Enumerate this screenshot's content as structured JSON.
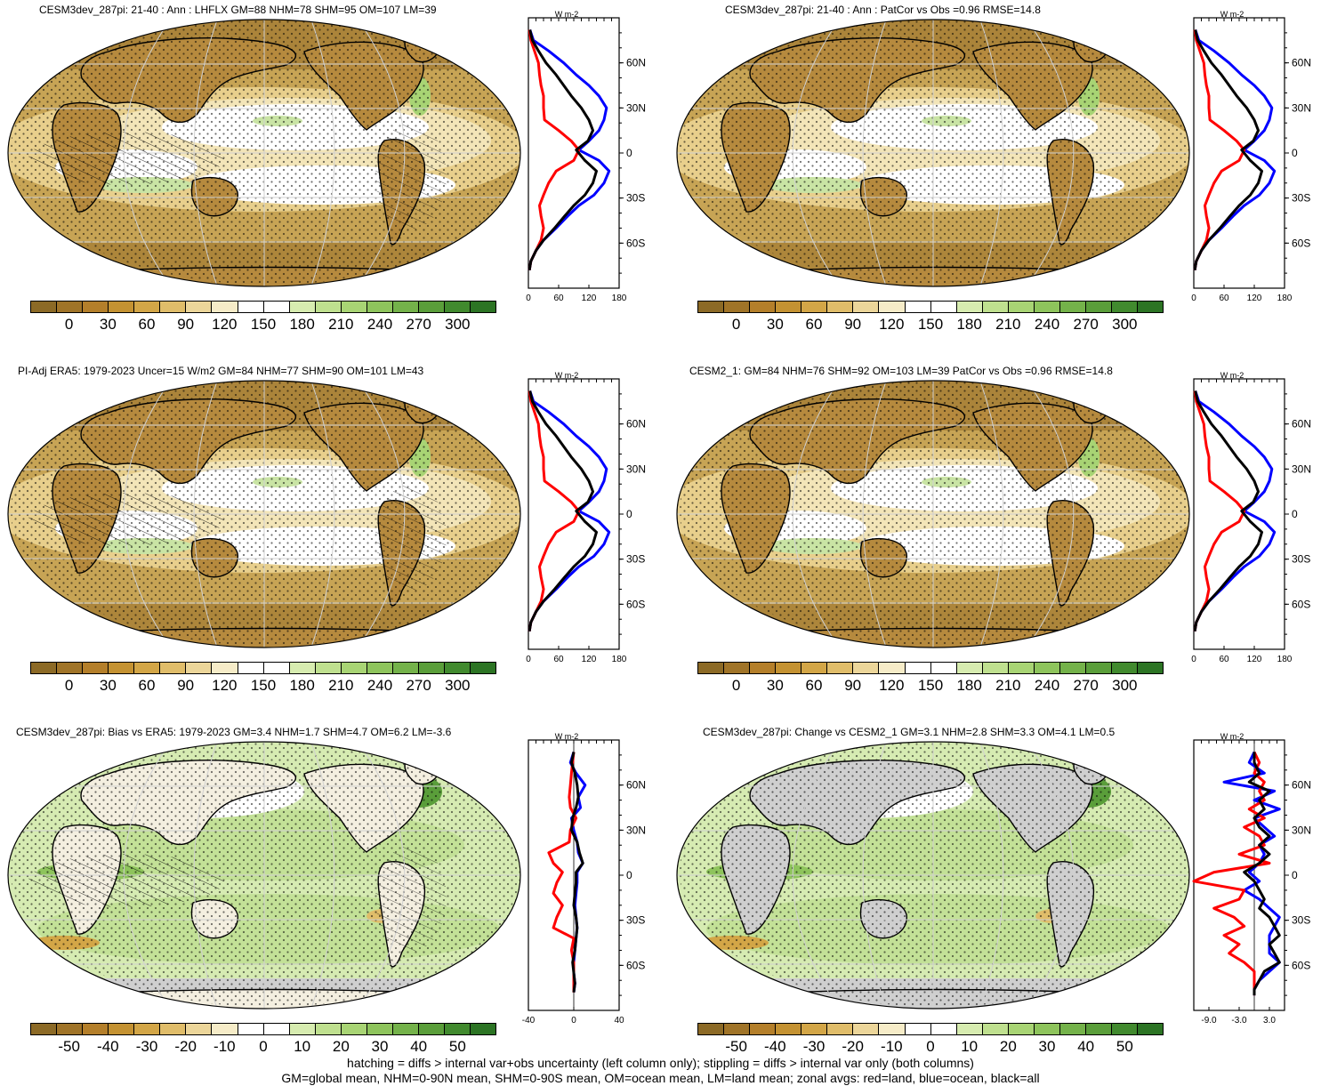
{
  "panels": [
    {
      "id": "p1",
      "title": "CESM3dev_287pi: 21-40 : Ann : LHFLX GM=88 NHM=78 SHM=95 OM=107 LM=39",
      "kind": "mean",
      "hatching": true,
      "zonal": {
        "xticks": [
          "0",
          "60",
          "120",
          "180"
        ],
        "xmin": 0,
        "xmax": 180,
        "unit": "W m-2"
      },
      "colorbar": [
        "0",
        "30",
        "60",
        "90",
        "120",
        "150",
        "180",
        "210",
        "240",
        "270",
        "300"
      ]
    },
    {
      "id": "p2",
      "title": "CESM3dev_287pi: 21-40 : Ann : PatCor vs Obs =0.96 RMSE=14.8",
      "kind": "mean",
      "hatching": false,
      "zonal": {
        "xticks": [
          "0",
          "60",
          "120",
          "180"
        ],
        "xmin": 0,
        "xmax": 180,
        "unit": "W m-2"
      },
      "colorbar": [
        "0",
        "30",
        "60",
        "90",
        "120",
        "150",
        "180",
        "210",
        "240",
        "270",
        "300"
      ]
    },
    {
      "id": "p3",
      "title": "PI-Adj ERA5: 1979-2023 Uncer=15 W/m2 GM=84 NHM=77 SHM=90 OM=101 LM=43",
      "kind": "mean",
      "hatching": true,
      "zonal": {
        "xticks": [
          "0",
          "60",
          "120",
          "180"
        ],
        "xmin": 0,
        "xmax": 180,
        "unit": "W m-2"
      },
      "colorbar": [
        "0",
        "30",
        "60",
        "90",
        "120",
        "150",
        "180",
        "210",
        "240",
        "270",
        "300"
      ]
    },
    {
      "id": "p4",
      "title": "CESM2_1: GM=84 NHM=76 SHM=92 OM=103 LM=39 PatCor vs Obs =0.96 RMSE=14.8",
      "kind": "mean",
      "hatching": false,
      "zonal": {
        "xticks": [
          "0",
          "60",
          "120",
          "180"
        ],
        "xmin": 0,
        "xmax": 180,
        "unit": "W m-2"
      },
      "colorbar": [
        "0",
        "30",
        "60",
        "90",
        "120",
        "150",
        "180",
        "210",
        "240",
        "270",
        "300"
      ]
    },
    {
      "id": "p5",
      "title": "CESM3dev_287pi: Bias vs ERA5: 1979-2023 GM=3.4 NHM=1.7 SHM=4.7 OM=6.2 LM=-3.6",
      "kind": "diff",
      "hatching": true,
      "zonal": {
        "xticks": [
          "-40",
          "0",
          "40"
        ],
        "xmin": -40,
        "xmax": 40,
        "unit": "W m-2"
      },
      "colorbar": [
        "-50",
        "-40",
        "-30",
        "-20",
        "-10",
        "0",
        "10",
        "20",
        "30",
        "40",
        "50"
      ]
    },
    {
      "id": "p6",
      "title": "CESM3dev_287pi: Change vs CESM2_1 GM=3.1 NHM=2.8 SHM=3.3 OM=4.1 LM=0.5",
      "kind": "diff",
      "hatching": false,
      "zonal": {
        "xticks": [
          "-9.0",
          "-3.0",
          "3.0"
        ],
        "xmin": -12,
        "xmax": 6,
        "unit": "W m-2"
      },
      "colorbar": [
        "-50",
        "-40",
        "-30",
        "-20",
        "-10",
        "0",
        "10",
        "20",
        "30",
        "40",
        "50"
      ]
    }
  ],
  "latitude_labels": [
    "60N",
    "30N",
    "0",
    "30S",
    "60S"
  ],
  "footnote": [
    "hatching = diffs > internal var+obs uncertainty (left column only); stippling = diffs > internal var only (both columns)",
    "GM=global mean, NHM=0-90N mean, SHM=0-90S mean, OM=ocean mean, LM=land mean; zonal avgs: red=land, blue=ocean, black=all"
  ],
  "colors": {
    "mean_scale": [
      "#8c6a26",
      "#a07428",
      "#b47f2a",
      "#c49232",
      "#d3a647",
      "#e0bd6a",
      "#ecd69a",
      "#f6ecc8",
      "#ffffff",
      "#ffffff",
      "#d7ecb0",
      "#bfe08f",
      "#a8d474",
      "#8ec45c",
      "#74b24a",
      "#5a9e3a",
      "#418a2e",
      "#2c7424"
    ],
    "diff_scale": [
      "#8c6a26",
      "#a07428",
      "#b47f2a",
      "#c49232",
      "#d3a647",
      "#e0bd6a",
      "#ecd69a",
      "#f6ecc8",
      "#ffffff",
      "#ffffff",
      "#d7ecb0",
      "#bfe08f",
      "#a8d474",
      "#8ec45c",
      "#74b24a",
      "#5a9e3a",
      "#418a2e",
      "#2c7424"
    ],
    "land_line": "#ff0000",
    "ocean_line": "#0000ff",
    "all_line": "#000000",
    "land_grey": "#cfcfcf"
  },
  "zonal_profiles": {
    "mean": {
      "lat": [
        82,
        75,
        68,
        60,
        52,
        45,
        38,
        30,
        22,
        15,
        8,
        2,
        -5,
        -12,
        -20,
        -28,
        -35,
        -42,
        -50,
        -58,
        -65,
        -72,
        -78
      ],
      "all": [
        3,
        8,
        20,
        35,
        55,
        70,
        85,
        105,
        120,
        128,
        118,
        95,
        112,
        135,
        128,
        112,
        90,
        72,
        52,
        30,
        15,
        5,
        2
      ],
      "ocean": [
        3,
        10,
        40,
        70,
        95,
        120,
        140,
        155,
        150,
        140,
        120,
        100,
        140,
        160,
        150,
        130,
        100,
        78,
        55,
        30,
        15,
        5,
        2
      ],
      "land": [
        2,
        5,
        12,
        20,
        22,
        25,
        30,
        30,
        32,
        60,
        85,
        100,
        90,
        55,
        40,
        30,
        22,
        25,
        30,
        25,
        15,
        5,
        2
      ]
    },
    "p5": {
      "lat": [
        82,
        75,
        68,
        60,
        52,
        45,
        38,
        30,
        22,
        15,
        8,
        2,
        -5,
        -12,
        -20,
        -28,
        -35,
        -42,
        -50,
        -58,
        -65,
        -72,
        -78
      ],
      "all": [
        0,
        -2,
        1,
        3,
        4,
        2,
        -1,
        -2,
        3,
        5,
        8,
        2,
        2,
        1,
        0,
        2,
        3,
        2,
        1,
        -1,
        0,
        1,
        0
      ],
      "ocean": [
        0,
        -3,
        2,
        10,
        4,
        6,
        -2,
        0,
        3,
        4,
        8,
        3,
        3,
        2,
        1,
        2,
        3,
        2,
        1,
        0,
        0,
        1,
        0
      ],
      "land": [
        0,
        -1,
        -2,
        -3,
        -4,
        -3,
        2,
        -3,
        -4,
        -22,
        -18,
        -10,
        -15,
        -18,
        -10,
        -15,
        -18,
        0,
        -2,
        0,
        0,
        0,
        0
      ]
    },
    "p6": {
      "lat": [
        82,
        75,
        68,
        62,
        56,
        50,
        44,
        38,
        32,
        26,
        20,
        14,
        8,
        2,
        -4,
        -10,
        -16,
        -22,
        -28,
        -34,
        -40,
        -46,
        -52,
        -58,
        -64,
        -70,
        -76,
        -80
      ],
      "all": [
        0,
        0,
        1,
        -1,
        3,
        1,
        2,
        0,
        1,
        3,
        1,
        3,
        1,
        -2,
        0,
        1,
        2,
        1,
        3,
        4,
        5,
        3,
        4,
        5,
        2,
        1,
        0,
        0
      ],
      "ocean": [
        0,
        -1,
        2,
        -6,
        4,
        0,
        5,
        0,
        2,
        4,
        1,
        2,
        1,
        -1,
        1,
        -2,
        1,
        3,
        5,
        4,
        3,
        3,
        3,
        5,
        3,
        1,
        0,
        0
      ],
      "land": [
        0,
        1,
        0,
        2,
        1,
        2,
        -1,
        2,
        -2,
        1,
        2,
        -3,
        3,
        -8,
        -12,
        -2,
        -3,
        -8,
        -4,
        -2,
        -6,
        -3,
        -5,
        -2,
        0,
        0,
        0,
        0
      ]
    }
  }
}
